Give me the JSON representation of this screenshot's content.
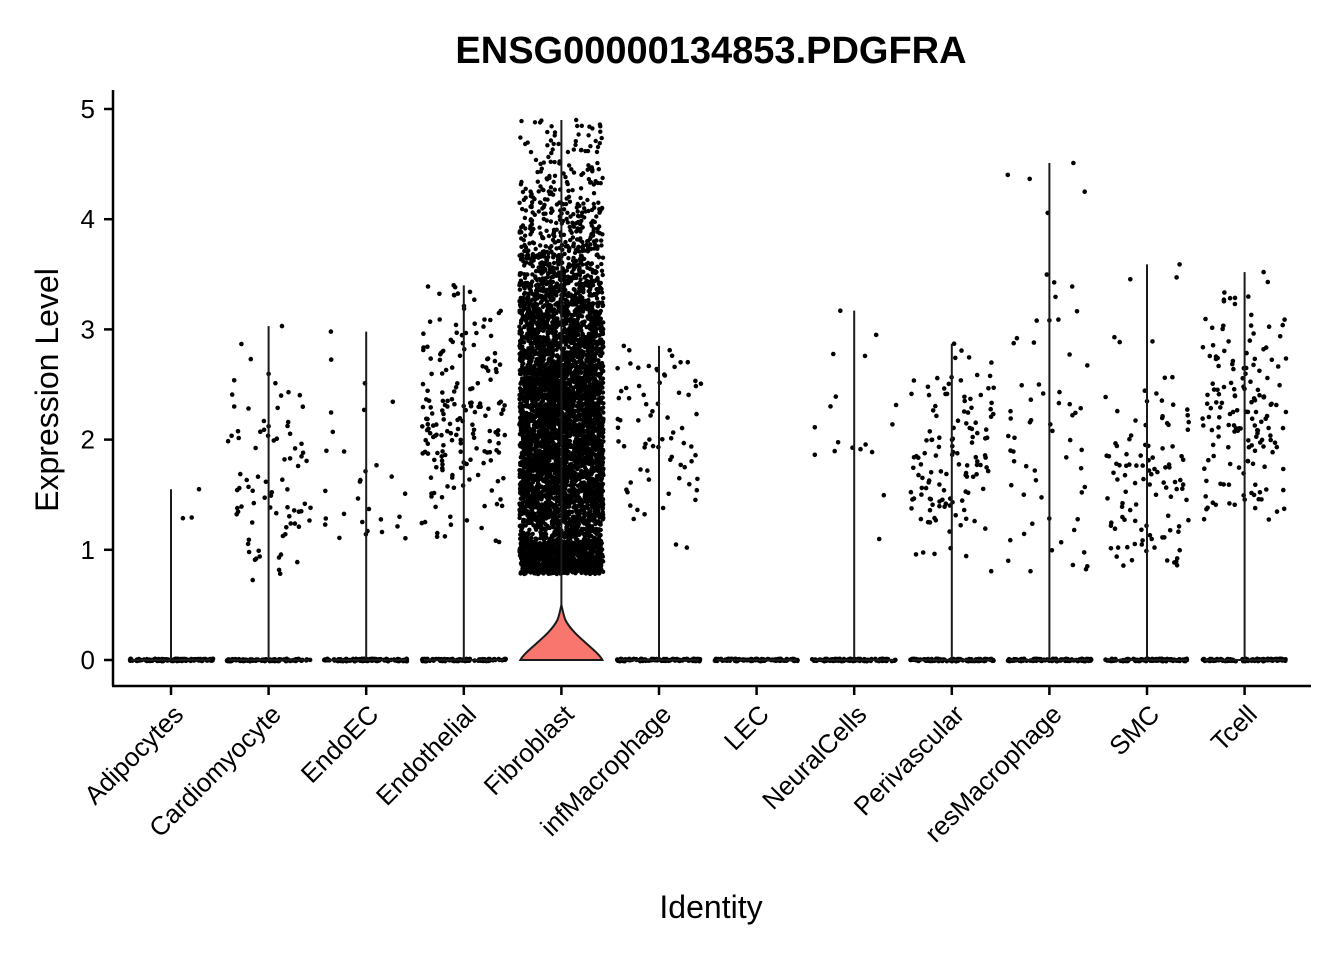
{
  "chart_data": {
    "type": "violin",
    "title": "ENSG00000134853.PDGFRA",
    "xlabel": "Identity",
    "ylabel": "Expression Level",
    "ylim": [
      -0.25,
      5.15
    ],
    "yticks": [
      0,
      1,
      2,
      3,
      4,
      5
    ],
    "grid": false,
    "legend": "none",
    "fill_color": "#F8766D",
    "point_color": "#000000",
    "categories": [
      "Adipocytes",
      "Cardiomyocyte",
      "EndoEC",
      "Endothelial",
      "Fibroblast",
      "infMacrophage",
      "LEC",
      "NeuralCells",
      "Perivascular",
      "resMacrophage",
      "SMC",
      "Tcell"
    ],
    "max_values": [
      1.55,
      3.03,
      2.98,
      3.4,
      4.9,
      2.85,
      0.0,
      3.17,
      2.87,
      4.51,
      3.59,
      3.52
    ],
    "nonzero_counts": [
      3,
      85,
      30,
      190,
      6000,
      75,
      0,
      18,
      130,
      65,
      110,
      160
    ],
    "nonzero_ranges": [
      [
        1.15,
        1.55
      ],
      [
        0.65,
        3.03
      ],
      [
        1.05,
        2.98
      ],
      [
        1.05,
        3.4
      ],
      [
        0.78,
        4.9
      ],
      [
        0.78,
        2.85
      ],
      [
        0,
        0
      ],
      [
        1.05,
        3.17
      ],
      [
        0.72,
        2.87
      ],
      [
        0.8,
        4.51
      ],
      [
        0.82,
        3.59
      ],
      [
        1.25,
        3.52
      ]
    ],
    "nonzero_centers": [
      1.35,
      1.6,
      1.6,
      2.3,
      2.1,
      1.9,
      0,
      2.0,
      1.8,
      2.0,
      1.8,
      2.3
    ]
  }
}
